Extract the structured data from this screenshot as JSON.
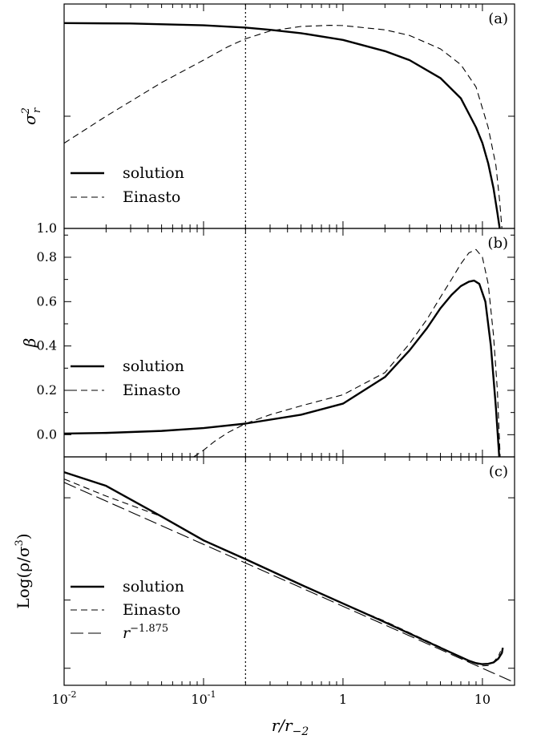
{
  "figure": {
    "xlabel": "r/r",
    "xlabel_sub": "−2",
    "x_ticks": [
      {
        "value": 0.01,
        "base": "10",
        "exp": "-2"
      },
      {
        "value": 0.1,
        "base": "10",
        "exp": "-1"
      },
      {
        "value": 1,
        "base": "1",
        "exp": ""
      },
      {
        "value": 10,
        "base": "10",
        "exp": ""
      }
    ],
    "vline_x": 0.2
  },
  "chart_data": [
    {
      "type": "line",
      "panel": "(a)",
      "ylabel": "σ",
      "ylabel_sup": "2",
      "ylabel_sub": "r",
      "xscale": "log",
      "xlim": [
        0.01,
        17
      ],
      "ylim": [
        0,
        1
      ],
      "y_ticks": [
        {
          "value": 0,
          "label": "1.0"
        }
      ],
      "legend": [
        "solution",
        "Einasto"
      ],
      "legend_position": "bottom-left",
      "series": [
        {
          "name": "solution",
          "style": "solid",
          "x": [
            0.01,
            0.03,
            0.1,
            0.2,
            0.3,
            0.5,
            1,
            2,
            3,
            5,
            7,
            9,
            10,
            11,
            12,
            12.8,
            13.3
          ],
          "y": [
            0.915,
            0.913,
            0.905,
            0.895,
            0.885,
            0.87,
            0.84,
            0.79,
            0.75,
            0.67,
            0.58,
            0.45,
            0.38,
            0.29,
            0.18,
            0.07,
            0.0
          ]
        },
        {
          "name": "Einasto",
          "style": "dashed",
          "x": [
            0.01,
            0.02,
            0.05,
            0.1,
            0.15,
            0.2,
            0.3,
            0.5,
            0.8,
            1,
            2,
            3,
            5,
            7,
            9,
            11,
            12.5,
            13.3,
            13.8
          ],
          "y": [
            0.38,
            0.5,
            0.65,
            0.75,
            0.81,
            0.845,
            0.88,
            0.9,
            0.905,
            0.904,
            0.885,
            0.86,
            0.8,
            0.73,
            0.63,
            0.45,
            0.28,
            0.12,
            0.0
          ]
        }
      ]
    },
    {
      "type": "line",
      "panel": "(b)",
      "ylabel": "β",
      "xscale": "log",
      "xlim": [
        0.01,
        17
      ],
      "ylim": [
        -0.1,
        0.93
      ],
      "y_ticks": [
        {
          "value": 0.0,
          "label": "0.0"
        },
        {
          "value": 0.2,
          "label": "0.2"
        },
        {
          "value": 0.4,
          "label": "0.4"
        },
        {
          "value": 0.6,
          "label": "0.6"
        },
        {
          "value": 0.8,
          "label": "0.8"
        }
      ],
      "legend": [
        "solution",
        "Einasto"
      ],
      "legend_position": "middle-left",
      "series": [
        {
          "name": "solution",
          "style": "solid",
          "x": [
            0.01,
            0.02,
            0.05,
            0.1,
            0.2,
            0.5,
            1,
            2,
            3,
            4,
            5,
            6,
            7,
            8,
            8.7,
            9.5,
            10.5,
            11.5,
            12.5,
            13.2
          ],
          "y": [
            0.005,
            0.008,
            0.017,
            0.03,
            0.05,
            0.09,
            0.14,
            0.26,
            0.38,
            0.48,
            0.57,
            0.63,
            0.67,
            0.69,
            0.695,
            0.68,
            0.6,
            0.4,
            0.12,
            -0.1
          ]
        },
        {
          "name": "Einasto",
          "style": "dashed",
          "x": [
            0.085,
            0.1,
            0.12,
            0.15,
            0.2,
            0.3,
            0.5,
            1,
            2,
            3,
            4,
            5,
            6,
            7,
            8,
            9,
            10,
            11,
            12,
            12.8,
            13.4
          ],
          "y": [
            -0.1,
            -0.07,
            -0.03,
            0.01,
            0.05,
            0.09,
            0.13,
            0.18,
            0.28,
            0.41,
            0.52,
            0.62,
            0.7,
            0.77,
            0.82,
            0.835,
            0.8,
            0.68,
            0.45,
            0.2,
            -0.1
          ]
        }
      ]
    },
    {
      "type": "line",
      "panel": "(c)",
      "ylabel": "Log(ρ/σ",
      "ylabel_sup": "3",
      "ylabel_tail": ")",
      "xscale": "log",
      "xlim": [
        0.01,
        17
      ],
      "ylim": [
        -2.5,
        4.2
      ],
      "legend": [
        "solution",
        "Einasto",
        "r"
      ],
      "legend_sup": [
        null,
        null,
        "−1.875"
      ],
      "legend_position": "bottom-left",
      "series": [
        {
          "name": "solution",
          "style": "solid",
          "x": [
            0.01,
            0.02,
            0.05,
            0.1,
            0.2,
            0.5,
            1,
            2,
            5,
            8,
            9,
            10,
            11,
            12,
            13,
            13.8,
            14
          ],
          "y": [
            3.75,
            3.35,
            2.45,
            1.75,
            1.2,
            0.45,
            -0.1,
            -0.65,
            -1.4,
            -1.78,
            -1.85,
            -1.88,
            -1.87,
            -1.83,
            -1.72,
            -1.55,
            -1.4
          ]
        },
        {
          "name": "Einasto",
          "style": "dashed",
          "x": [
            0.01,
            0.02,
            0.05,
            0.1,
            0.2,
            0.5,
            1,
            2,
            5,
            8,
            10,
            11,
            12,
            13,
            13.5
          ],
          "y": [
            3.55,
            3.05,
            2.45,
            1.75,
            1.2,
            0.45,
            -0.1,
            -0.62,
            -1.38,
            -1.8,
            -1.93,
            -1.92,
            -1.82,
            -1.65,
            -1.5
          ]
        },
        {
          "name": "r",
          "style": "longdash",
          "x": [
            0.01,
            16
          ],
          "y": [
            3.45,
            -2.37
          ]
        }
      ]
    }
  ]
}
